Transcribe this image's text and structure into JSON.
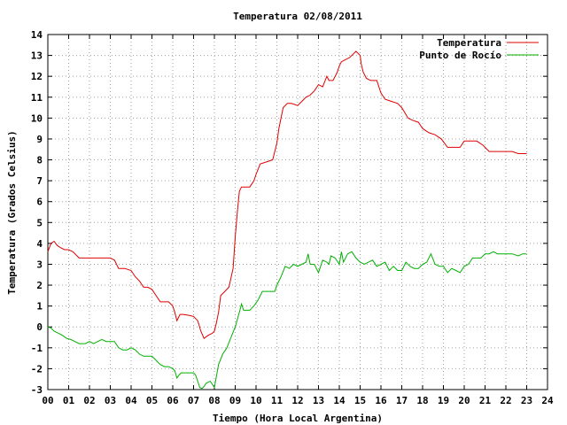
{
  "chart_data": {
    "type": "line",
    "title": "Temperatura 02/08/2011",
    "xlabel": "Tiempo (Hora Local Argentina)",
    "ylabel": "Temperatura (Grados Celsius)",
    "xlim": [
      0,
      24
    ],
    "ylim": [
      -3,
      14
    ],
    "x_ticks": [
      "00",
      "01",
      "02",
      "03",
      "04",
      "05",
      "06",
      "07",
      "08",
      "09",
      "10",
      "11",
      "12",
      "13",
      "14",
      "15",
      "16",
      "17",
      "18",
      "19",
      "20",
      "21",
      "22",
      "23",
      "24"
    ],
    "y_ticks": [
      "-3",
      "-2",
      "-1",
      "0",
      "1",
      "2",
      "3",
      "4",
      "5",
      "6",
      "7",
      "8",
      "9",
      "10",
      "11",
      "12",
      "13",
      "14"
    ],
    "grid": true,
    "legend_position": "top-right",
    "series": [
      {
        "name": "Temperatura",
        "color": "#e00000",
        "x": [
          0.0,
          0.15,
          0.3,
          0.45,
          0.6,
          0.8,
          1.0,
          1.2,
          1.5,
          2.0,
          2.5,
          3.0,
          3.2,
          3.4,
          3.7,
          4.0,
          4.2,
          4.4,
          4.6,
          4.8,
          5.0,
          5.2,
          5.4,
          5.6,
          5.8,
          6.0,
          6.1,
          6.2,
          6.35,
          6.5,
          6.8,
          7.0,
          7.2,
          7.35,
          7.5,
          7.7,
          7.9,
          8.0,
          8.1,
          8.2,
          8.3,
          8.5,
          8.7,
          8.9,
          9.0,
          9.1,
          9.2,
          9.3,
          9.5,
          9.7,
          9.9,
          10.0,
          10.2,
          10.5,
          10.8,
          11.0,
          11.1,
          11.3,
          11.5,
          11.7,
          12.0,
          12.2,
          12.4,
          12.6,
          12.8,
          13.0,
          13.2,
          13.4,
          13.5,
          13.7,
          13.9,
          14.0,
          14.1,
          14.3,
          14.5,
          14.8,
          15.0,
          15.05,
          15.15,
          15.3,
          15.5,
          15.8,
          16.0,
          16.2,
          16.5,
          16.8,
          17.0,
          17.3,
          17.5,
          17.8,
          18.0,
          18.3,
          18.6,
          18.9,
          19.2,
          19.5,
          19.8,
          20.0,
          20.3,
          20.6,
          20.9,
          21.2,
          21.5,
          21.8,
          22.0,
          22.3,
          22.6,
          22.8,
          23.0
        ],
        "values": [
          3.6,
          4.0,
          4.1,
          3.9,
          3.8,
          3.7,
          3.7,
          3.6,
          3.3,
          3.3,
          3.3,
          3.3,
          3.2,
          2.8,
          2.8,
          2.7,
          2.4,
          2.2,
          1.9,
          1.9,
          1.8,
          1.5,
          1.2,
          1.2,
          1.2,
          1.0,
          0.7,
          0.3,
          0.6,
          0.6,
          0.55,
          0.5,
          0.3,
          -0.2,
          -0.55,
          -0.4,
          -0.3,
          -0.2,
          0.2,
          0.7,
          1.5,
          1.7,
          1.9,
          2.8,
          4.3,
          5.5,
          6.5,
          6.7,
          6.7,
          6.7,
          7.0,
          7.3,
          7.8,
          7.9,
          8.0,
          8.8,
          9.5,
          10.5,
          10.7,
          10.7,
          10.6,
          10.8,
          11.0,
          11.1,
          11.3,
          11.6,
          11.5,
          12.0,
          11.8,
          11.8,
          12.2,
          12.5,
          12.7,
          12.8,
          12.9,
          13.2,
          13.0,
          12.6,
          12.2,
          11.9,
          11.8,
          11.8,
          11.2,
          10.9,
          10.8,
          10.7,
          10.5,
          10.0,
          9.9,
          9.8,
          9.5,
          9.3,
          9.2,
          9.0,
          8.6,
          8.6,
          8.6,
          8.9,
          8.9,
          8.9,
          8.7,
          8.4,
          8.4,
          8.4,
          8.4,
          8.4,
          8.3,
          8.3,
          8.3
        ]
      },
      {
        "name": "Punto de Rocío",
        "color": "#00b000",
        "x": [
          0.0,
          0.15,
          0.3,
          0.5,
          0.7,
          0.9,
          1.1,
          1.3,
          1.5,
          1.8,
          2.0,
          2.2,
          2.4,
          2.6,
          2.8,
          3.0,
          3.2,
          3.4,
          3.6,
          3.8,
          4.0,
          4.2,
          4.4,
          4.6,
          4.8,
          5.0,
          5.2,
          5.4,
          5.6,
          5.8,
          6.0,
          6.1,
          6.2,
          6.3,
          6.4,
          6.6,
          6.8,
          7.0,
          7.1,
          7.2,
          7.3,
          7.4,
          7.5,
          7.6,
          7.8,
          8.0,
          8.2,
          8.4,
          8.6,
          8.8,
          9.0,
          9.2,
          9.3,
          9.4,
          9.5,
          9.7,
          9.9,
          10.1,
          10.3,
          10.5,
          10.7,
          10.9,
          11.0,
          11.2,
          11.4,
          11.6,
          11.8,
          12.0,
          12.2,
          12.4,
          12.5,
          12.6,
          12.8,
          13.0,
          13.2,
          13.4,
          13.5,
          13.6,
          13.8,
          14.0,
          14.1,
          14.2,
          14.4,
          14.6,
          14.8,
          15.0,
          15.2,
          15.4,
          15.6,
          15.8,
          16.0,
          16.2,
          16.4,
          16.6,
          16.8,
          17.0,
          17.2,
          17.4,
          17.6,
          17.8,
          18.0,
          18.2,
          18.4,
          18.6,
          18.8,
          19.0,
          19.2,
          19.4,
          19.6,
          19.8,
          20.0,
          20.2,
          20.4,
          20.6,
          20.8,
          21.0,
          21.2,
          21.4,
          21.6,
          21.8,
          22.0,
          22.3,
          22.6,
          22.8,
          23.0
        ],
        "values": [
          0.0,
          -0.05,
          -0.2,
          -0.3,
          -0.4,
          -0.55,
          -0.6,
          -0.7,
          -0.8,
          -0.8,
          -0.7,
          -0.8,
          -0.7,
          -0.6,
          -0.7,
          -0.7,
          -0.7,
          -1.0,
          -1.1,
          -1.1,
          -1.0,
          -1.1,
          -1.3,
          -1.4,
          -1.4,
          -1.4,
          -1.6,
          -1.8,
          -1.9,
          -1.9,
          -2.0,
          -2.1,
          -2.45,
          -2.3,
          -2.2,
          -2.2,
          -2.2,
          -2.2,
          -2.3,
          -2.6,
          -2.9,
          -2.95,
          -2.85,
          -2.7,
          -2.6,
          -2.9,
          -1.8,
          -1.3,
          -1.0,
          -0.5,
          0.0,
          0.7,
          1.1,
          0.8,
          0.8,
          0.8,
          1.0,
          1.3,
          1.7,
          1.7,
          1.7,
          1.7,
          2.0,
          2.4,
          2.9,
          2.8,
          3.0,
          2.9,
          3.0,
          3.1,
          3.5,
          3.0,
          3.0,
          2.6,
          3.2,
          3.1,
          3.0,
          3.4,
          3.3,
          3.0,
          3.6,
          3.1,
          3.5,
          3.6,
          3.3,
          3.1,
          3.0,
          3.1,
          3.2,
          2.9,
          3.0,
          3.1,
          2.7,
          2.9,
          2.7,
          2.7,
          3.1,
          2.9,
          2.8,
          2.8,
          3.0,
          3.1,
          3.5,
          3.0,
          2.9,
          2.9,
          2.6,
          2.8,
          2.7,
          2.6,
          2.9,
          3.0,
          3.3,
          3.3,
          3.3,
          3.5,
          3.5,
          3.6,
          3.5,
          3.5,
          3.5,
          3.5,
          3.4,
          3.5,
          3.5
        ]
      }
    ]
  }
}
